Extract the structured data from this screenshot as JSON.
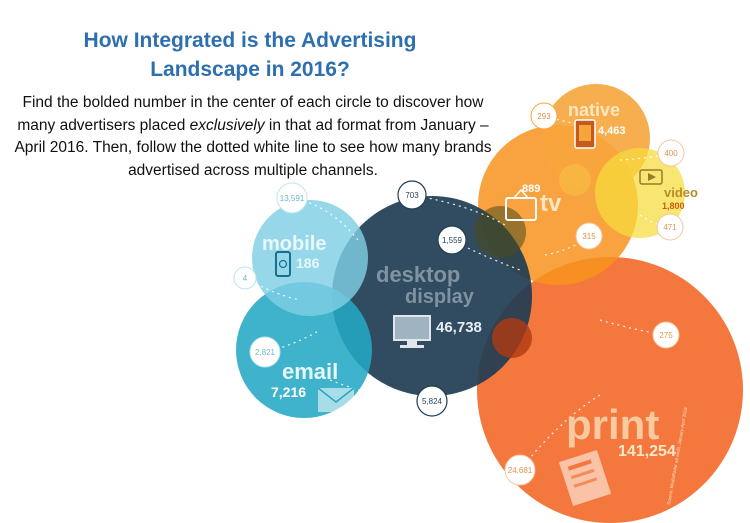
{
  "title_line1": "How Integrated is the Advertising",
  "title_line2": "Landscape in 2016?",
  "intro": {
    "before": "Find the bolded number in the center of each circle to discover how many advertisers placed ",
    "emphasis": "exclusively",
    "after": " in that ad format from January – April 2016. Then, follow the dotted white line to see how many brands advertised across multiple channels."
  },
  "channels": {
    "mobile": {
      "label": "mobile",
      "count": "186",
      "color": "#7fd0e4",
      "icon": "smartphone-icon"
    },
    "email": {
      "label": "email",
      "count": "7,216",
      "color": "#23a8c4",
      "icon": "envelope-icon"
    },
    "desktop": {
      "label_line1": "desktop",
      "label_line2": "display",
      "count": "46,738",
      "color": "#1f3d52",
      "icon": "monitor-icon"
    },
    "tv": {
      "label": "tv",
      "count": "889",
      "color": "#f7931e",
      "icon": "television-icon"
    },
    "native": {
      "label": "native",
      "count": "4,463",
      "color": "#f6a53c",
      "icon": "tablet-icon"
    },
    "video": {
      "label": "video",
      "count": "1,800",
      "color": "#f7dc3c",
      "icon": "play-icon"
    },
    "print": {
      "label": "print",
      "count": "141,254",
      "color": "#f26522",
      "icon": "newspaper-icon"
    }
  },
  "overlaps": {
    "mobile_desktop": "13,591",
    "mobile_email": "4",
    "email_left": "2,821",
    "desktop_tv": "703",
    "desktop_center": "1,559",
    "email_desktop": "5,824",
    "native_left": "293",
    "video_top": "400",
    "video_bottom": "471",
    "tv_print": "315",
    "print_right": "275",
    "print_left": "24,681"
  },
  "source": "Source: MediaRadar ad audit, January-April 2016"
}
